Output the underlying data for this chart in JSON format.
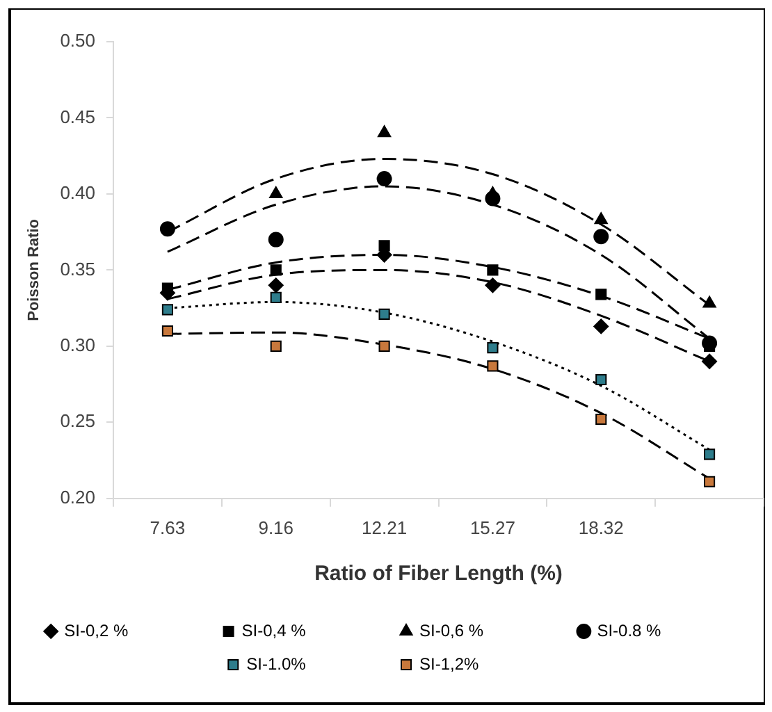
{
  "chart_data": {
    "type": "scatter",
    "xlabel": "Ratio of Fiber Length (%)",
    "ylabel": "Poisson Ratio",
    "categories": [
      "7.63",
      "9.16",
      "12.21",
      "15.27",
      "18.32",
      null
    ],
    "ylim": [
      0.2,
      0.5
    ],
    "yticks": [
      {
        "value": 0.2,
        "label": "0.20"
      },
      0.25,
      {
        "value": 0.3,
        "label": "0.30"
      },
      0.35,
      {
        "value": 0.4,
        "label": "0.40"
      },
      0.45,
      {
        "value": 0.5,
        "label": "0.50"
      }
    ],
    "grid": false,
    "legend": "bottom",
    "series": [
      {
        "name": "SI-0,2 %",
        "color": "#000000",
        "marker": "diamond",
        "values": [
          0.335,
          0.34,
          0.36,
          0.34,
          0.313,
          0.29
        ]
      },
      {
        "name": "SI-0,4 %",
        "color": "#000000",
        "marker": "square",
        "values": [
          0.338,
          0.35,
          0.366,
          0.35,
          0.334,
          0.3
        ]
      },
      {
        "name": "SI-0,6 %",
        "color": "#000000",
        "marker": "triangle",
        "values": [
          null,
          0.4,
          0.44,
          0.4,
          0.383,
          0.328
        ]
      },
      {
        "name": "SI-0.8 %",
        "color": "#000000",
        "marker": "circle",
        "values": [
          0.377,
          0.37,
          0.41,
          0.397,
          0.372,
          0.302
        ]
      },
      {
        "name": "SI-1.0%",
        "color": "#2e7d8c",
        "marker": "square",
        "values": [
          0.324,
          0.332,
          0.321,
          0.299,
          0.278,
          0.229
        ]
      },
      {
        "name": "SI-1,2%",
        "color": "#c8783c",
        "marker": "square",
        "values": [
          0.31,
          0.3,
          0.3,
          0.287,
          0.252,
          0.211
        ]
      },
      {
        "type": "line",
        "color": "#000000",
        "line_style": "dashed",
        "marker": "none",
        "values": [
          0.331,
          0.347,
          0.35,
          0.342,
          0.32,
          0.29
        ]
      },
      {
        "type": "line",
        "color": "#000000",
        "line_style": "dashed",
        "marker": "none",
        "values": [
          0.337,
          0.355,
          0.36,
          0.352,
          0.333,
          0.305
        ]
      },
      {
        "type": "line",
        "color": "#000000",
        "line_style": "dashed",
        "marker": "none",
        "values": [
          0.375,
          0.41,
          0.423,
          0.413,
          0.38,
          0.327
        ]
      },
      {
        "type": "line",
        "color": "#000000",
        "line_style": "dashed",
        "marker": "none",
        "values": [
          0.362,
          0.393,
          0.405,
          0.393,
          0.36,
          0.305
        ]
      },
      {
        "type": "line",
        "color": "#000000",
        "line_style": "dotted",
        "marker": "none",
        "values": [
          0.325,
          0.329,
          0.322,
          0.303,
          0.274,
          0.232
        ]
      },
      {
        "type": "line",
        "color": "#000000",
        "line_style": "dashed",
        "marker": "none",
        "values": [
          0.308,
          0.309,
          0.301,
          0.285,
          0.256,
          0.213
        ]
      }
    ]
  }
}
